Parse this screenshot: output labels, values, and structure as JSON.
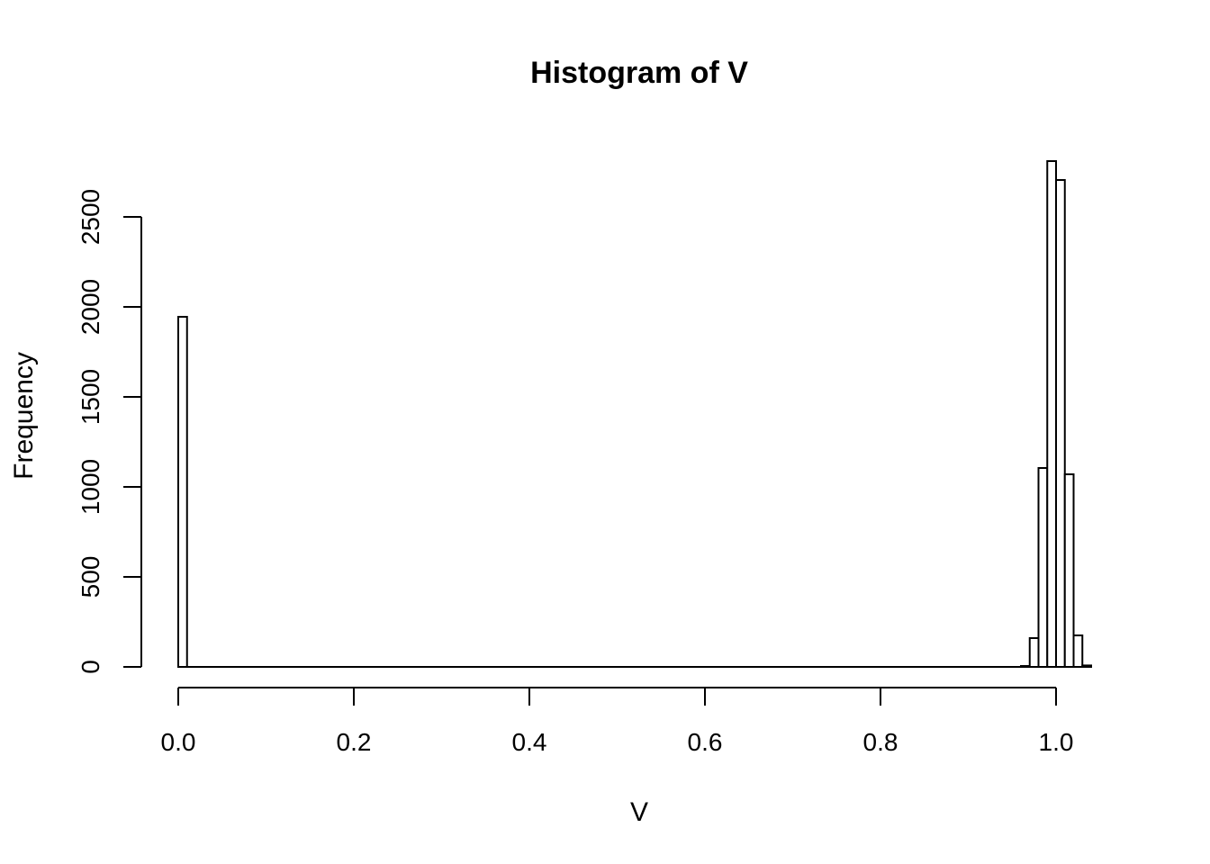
{
  "chart_data": {
    "type": "bar",
    "title": "Histogram of V",
    "xlabel": "V",
    "ylabel": "Frequency",
    "xlim": [
      0,
      1.05
    ],
    "ylim": [
      0,
      2900
    ],
    "x_ticks": [
      0.0,
      0.2,
      0.4,
      0.6,
      0.8,
      1.0
    ],
    "x_tick_labels": [
      "0.0",
      "0.2",
      "0.4",
      "0.6",
      "0.8",
      "1.0"
    ],
    "y_ticks": [
      0,
      500,
      1000,
      1500,
      2000,
      2500
    ],
    "y_tick_labels": [
      "0",
      "500",
      "1000",
      "1500",
      "2000",
      "2500"
    ],
    "grid": false,
    "bin_width": 0.01,
    "bins": [
      {
        "start": 0.0,
        "end": 0.01,
        "count": 1945
      },
      {
        "start": 0.96,
        "end": 0.97,
        "count": 5
      },
      {
        "start": 0.97,
        "end": 0.98,
        "count": 160
      },
      {
        "start": 0.98,
        "end": 0.99,
        "count": 1105
      },
      {
        "start": 0.99,
        "end": 1.0,
        "count": 2810
      },
      {
        "start": 1.0,
        "end": 1.01,
        "count": 2705
      },
      {
        "start": 1.01,
        "end": 1.02,
        "count": 1070
      },
      {
        "start": 1.02,
        "end": 1.03,
        "count": 175
      },
      {
        "start": 1.03,
        "end": 1.04,
        "count": 8
      }
    ]
  }
}
